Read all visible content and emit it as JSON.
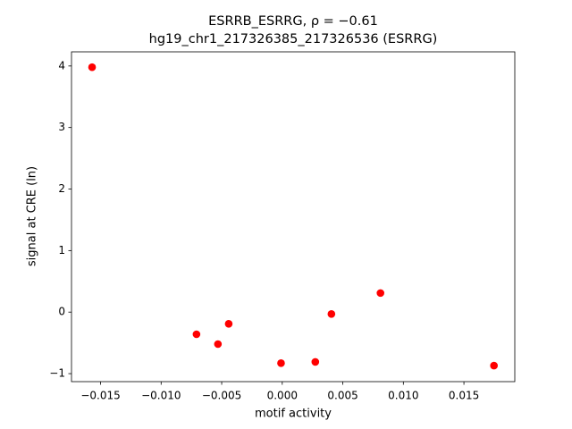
{
  "chart_data": {
    "type": "scatter",
    "title": "ESRRB_ESRRG, ρ = −0.61",
    "subtitle": "hg19_chr1_217326385_217326536 (ESRRG)",
    "x_label": "motif activity",
    "y_label": "signal at CRE (ln)",
    "series": [
      {
        "color": "#ff0000",
        "x": [
          -0.0157,
          -0.00708,
          -0.00531,
          -0.00442,
          -0.0001,
          0.00273,
          0.00406,
          0.00811,
          0.01748
        ],
        "values": [
          3.98,
          -0.36,
          -0.52,
          -0.19,
          -0.83,
          -0.81,
          -0.03,
          0.31,
          -0.87
        ]
      }
    ],
    "xlim": [
      -0.0174,
      0.0192
    ],
    "ylim": [
      -1.13,
      4.23
    ],
    "xticks": [
      {
        "value": -0.015,
        "label": "−0.015"
      },
      {
        "value": -0.01,
        "label": "−0.010"
      },
      {
        "value": -0.005,
        "label": "−0.005"
      },
      {
        "value": 0,
        "label": "0.000"
      },
      0.005,
      {
        "value": 0.01,
        "label": "0.010"
      },
      0.015
    ],
    "yticks": [
      {
        "value": -1,
        "label": "−1"
      },
      0,
      1,
      2,
      3,
      4
    ]
  }
}
